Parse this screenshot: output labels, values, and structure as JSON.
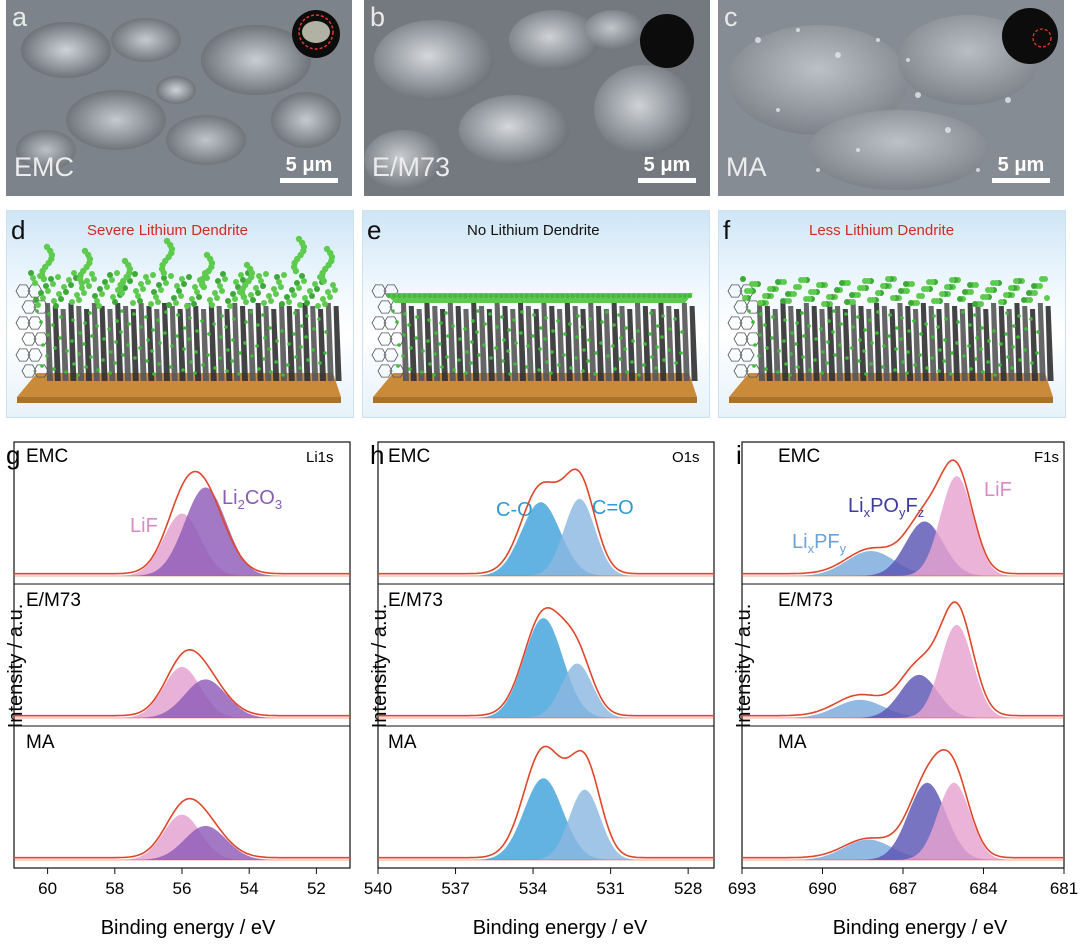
{
  "sem": [
    {
      "letter": "a",
      "sample": "EMC",
      "scale": "5 μm"
    },
    {
      "letter": "b",
      "sample": "E/M73",
      "scale": "5 μm"
    },
    {
      "letter": "c",
      "sample": "MA",
      "scale": "5 μm"
    }
  ],
  "schematic": [
    {
      "letter": "d",
      "title": "Severe Lithium Dendrite",
      "title_color": "#d6281e"
    },
    {
      "letter": "e",
      "title": "No Lithium Dendrite",
      "title_color": "#111111"
    },
    {
      "letter": "f",
      "title": "Less Lithium Dendrite",
      "title_color": "#d6281e"
    }
  ],
  "colors": {
    "envelope": "#e0462a",
    "li_pink": "#e3a1cf",
    "li_purple": "#8f5cb8",
    "o_co": "#3fa2db",
    "o_cdo": "#8bb8e0",
    "f_lif": "#e6a2d0",
    "f_lipoyfz": "#5a55b5",
    "f_lipfy": "#7aa9dc"
  },
  "chart_data": [
    {
      "panel": "g",
      "type": "area",
      "core": "Li1s",
      "xlabel": "Binding energy / eV",
      "ylabel": "Intensity / a.u.",
      "xlim": [
        61,
        51
      ],
      "xticks": [
        60,
        58,
        56,
        54,
        52
      ],
      "sections": [
        {
          "sample": "EMC",
          "components": [
            {
              "name": "LiF",
              "center": 56.0,
              "amp": 0.55
            },
            {
              "name": "Li2CO3",
              "center": 55.3,
              "amp": 0.78
            }
          ],
          "envelope_peak": 0.9
        },
        {
          "sample": "E/M73",
          "components": [
            {
              "name": "LiF",
              "center": 56.0,
              "amp": 0.45
            },
            {
              "name": "Li2CO3",
              "center": 55.3,
              "amp": 0.34
            }
          ],
          "envelope_peak": 0.58
        },
        {
          "sample": "MA",
          "components": [
            {
              "name": "LiF",
              "center": 56.0,
              "amp": 0.4
            },
            {
              "name": "Li2CO3",
              "center": 55.3,
              "amp": 0.3
            }
          ],
          "envelope_peak": 0.52
        }
      ],
      "annotations": {
        "lif": "LiF",
        "li2co3_main": "Li",
        "li2co3_sub": "2",
        "li2co3_rest": "CO",
        "li2co3_sub2": "3"
      }
    },
    {
      "panel": "h",
      "type": "area",
      "core": "O1s",
      "xlabel": "Binding energy / eV",
      "ylabel": "Intensity / a.u.",
      "xlim": [
        540,
        527
      ],
      "xticks": [
        540,
        537,
        534,
        531,
        528
      ],
      "sections": [
        {
          "sample": "EMC",
          "components": [
            {
              "name": "C-O",
              "center": 533.7,
              "amp": 0.65
            },
            {
              "name": "C=O",
              "center": 532.2,
              "amp": 0.68
            }
          ],
          "envelope_peak": 0.92
        },
        {
          "sample": "E/M73",
          "components": [
            {
              "name": "C-O",
              "center": 533.6,
              "amp": 0.88
            },
            {
              "name": "C=O",
              "center": 532.3,
              "amp": 0.48
            }
          ],
          "envelope_peak": 0.95
        },
        {
          "sample": "MA",
          "components": [
            {
              "name": "C-O",
              "center": 533.6,
              "amp": 0.72
            },
            {
              "name": "C=O",
              "center": 532.0,
              "amp": 0.62
            }
          ],
          "envelope_peak": 0.98
        }
      ],
      "annotations": {
        "co": "C-O",
        "cdo": "C=O"
      }
    },
    {
      "panel": "i",
      "type": "area",
      "core": "F1s",
      "xlabel": "Binding energy / eV",
      "ylabel": "Intensity / a.u.",
      "xlim": [
        693,
        681
      ],
      "xticks": [
        693,
        690,
        687,
        684,
        681
      ],
      "sections": [
        {
          "sample": "EMC",
          "components": [
            {
              "name": "LixPFy",
              "center": 688.2,
              "amp": 0.22
            },
            {
              "name": "LixPOyFz",
              "center": 686.2,
              "amp": 0.48
            },
            {
              "name": "LiF",
              "center": 685.0,
              "amp": 0.88
            }
          ],
          "envelope_peak": 1.0
        },
        {
          "sample": "E/M73",
          "components": [
            {
              "name": "LixPFy",
              "center": 688.6,
              "amp": 0.16
            },
            {
              "name": "LixPOyFz",
              "center": 686.4,
              "amp": 0.38
            },
            {
              "name": "LiF",
              "center": 685.0,
              "amp": 0.82
            }
          ],
          "envelope_peak": 1.0
        },
        {
          "sample": "MA",
          "components": [
            {
              "name": "LixPFy",
              "center": 688.3,
              "amp": 0.18
            },
            {
              "name": "LixPOyFz",
              "center": 686.1,
              "amp": 0.68
            },
            {
              "name": "LiF",
              "center": 685.1,
              "amp": 0.68
            }
          ],
          "envelope_peak": 0.95
        }
      ],
      "annotations": {
        "lipoyfz_a": "Li",
        "lipoyfz_b": "x",
        "lipoyfz_c": "PO",
        "lipoyfz_d": "y",
        "lipoyfz_e": "F",
        "lipoyfz_f": "z",
        "lipfy_a": "Li",
        "lipfy_b": "x",
        "lipfy_c": "PF",
        "lipfy_d": "y",
        "lif": "LiF"
      }
    }
  ],
  "panel_letters": {
    "g": "g",
    "h": "h",
    "i": "i"
  }
}
